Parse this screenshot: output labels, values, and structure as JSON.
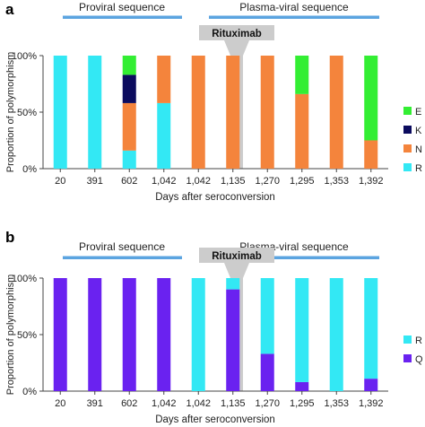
{
  "colors": {
    "E": "#33ee33",
    "K": "#0b0b5e",
    "N": "#f4843c",
    "R": "#33e8f4",
    "Q": "#6a22f0",
    "sequence_line": "#5ba4e0",
    "rituximab": "#cccccc"
  },
  "chart_data": [
    {
      "panel_label": "a",
      "type": "bar",
      "stacked": true,
      "xlabel": "Days after seroconversion",
      "ylabel": "Proportion of polymorphism",
      "ylim": [
        0,
        100
      ],
      "yticks": [
        "0%",
        "50%",
        "100%"
      ],
      "categories": [
        "20",
        "391",
        "602",
        "1,042",
        "1,042",
        "1,135",
        "1,270",
        "1,295",
        "1,353",
        "1,392"
      ],
      "series": [
        {
          "name": "R",
          "values": [
            100,
            100,
            16,
            58,
            0,
            0,
            0,
            0,
            0,
            0
          ]
        },
        {
          "name": "N",
          "values": [
            0,
            0,
            42,
            42,
            100,
            100,
            100,
            66,
            100,
            25
          ]
        },
        {
          "name": "K",
          "values": [
            0,
            0,
            25,
            0,
            0,
            0,
            0,
            0,
            0,
            0
          ]
        },
        {
          "name": "E",
          "values": [
            0,
            0,
            17,
            0,
            0,
            0,
            0,
            34,
            0,
            75
          ]
        }
      ],
      "legend_order": [
        "E",
        "K",
        "N",
        "R"
      ],
      "legend": "right",
      "annotations": {
        "proviral": "Proviral sequence",
        "plasma": "Plasma-viral sequence",
        "rituximab": "Rituximab"
      }
    },
    {
      "panel_label": "b",
      "type": "bar",
      "stacked": true,
      "xlabel": "Days after seroconversion",
      "ylabel": "Proportion of polymorphism",
      "ylim": [
        0,
        100
      ],
      "yticks": [
        "0%",
        "50%",
        "100%"
      ],
      "categories": [
        "20",
        "391",
        "602",
        "1,042",
        "1,042",
        "1,135",
        "1,270",
        "1,295",
        "1,353",
        "1,392"
      ],
      "series": [
        {
          "name": "Q",
          "values": [
            100,
            100,
            100,
            100,
            0,
            90,
            33,
            8,
            0,
            11
          ]
        },
        {
          "name": "R",
          "values": [
            0,
            0,
            0,
            0,
            100,
            10,
            67,
            92,
            100,
            89
          ]
        }
      ],
      "legend_order": [
        "R",
        "Q"
      ],
      "legend": "right",
      "annotations": {
        "proviral": "Proviral sequence",
        "plasma": "Plasma-viral sequence",
        "rituximab": "Rituximab"
      }
    }
  ]
}
